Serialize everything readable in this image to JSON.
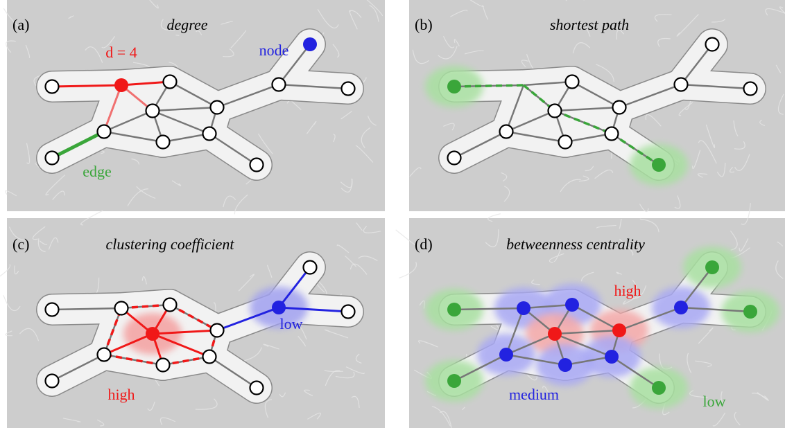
{
  "panels": [
    {
      "label": "(a)",
      "title": "degree",
      "annotations": [
        "d = 4",
        "node",
        "edge"
      ]
    },
    {
      "label": "(b)",
      "title": "shortest path",
      "annotations": []
    },
    {
      "label": "(c)",
      "title": "clustering coefficient",
      "annotations": [
        "high",
        "low"
      ]
    },
    {
      "label": "(d)",
      "title": "betweenness centrality",
      "annotations": [
        "high",
        "medium",
        "low"
      ]
    }
  ]
}
